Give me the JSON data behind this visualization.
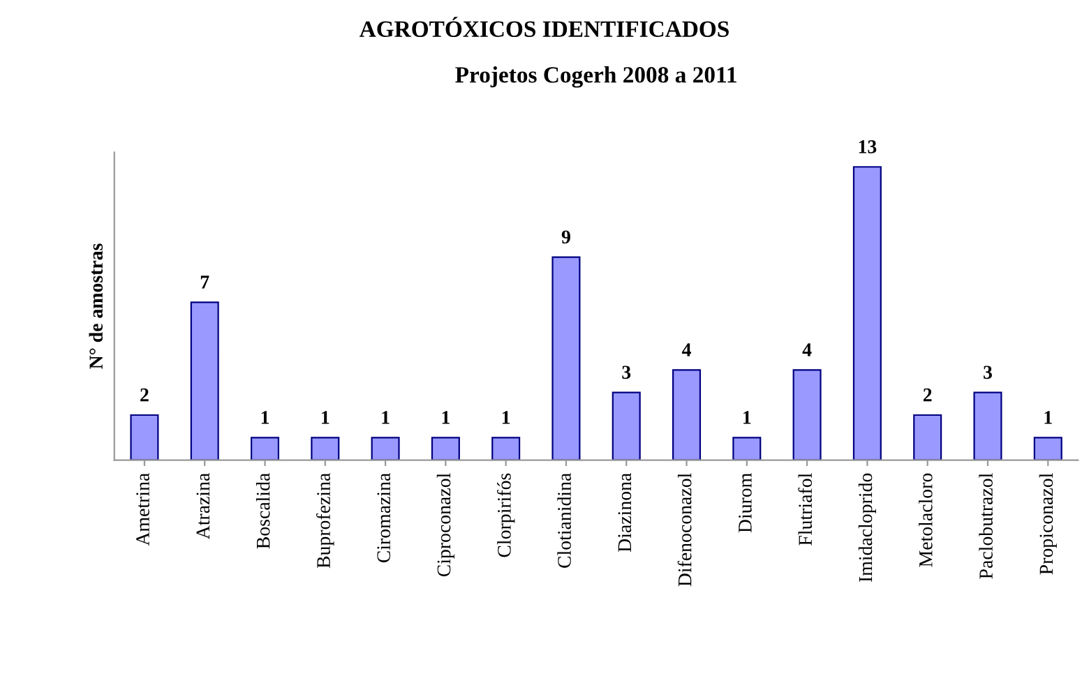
{
  "chart_data": {
    "type": "bar",
    "title": "AGROTÓXICOS IDENTIFICADOS",
    "subtitle": "Projetos Cogerh 2008 a 2011",
    "ylabel": "N° de amostras",
    "categories": [
      "Ametrina",
      "Atrazina",
      "Boscalida",
      "Buprofezina",
      "Ciromazina",
      "Ciproconazol",
      "Clorpirifós",
      "Clotianidina",
      "Diazinona",
      "Difenoconazol",
      "Diurom",
      "Flutriafol",
      "Imidacloprido",
      "Metolacloro",
      "Paclobutrazol",
      "Propiconazol"
    ],
    "values": [
      2,
      7,
      1,
      1,
      1,
      1,
      1,
      9,
      3,
      4,
      1,
      4,
      13,
      2,
      3,
      1
    ],
    "color": "#9999ff",
    "data_labels": true,
    "grid": false,
    "legend": false,
    "tick_labels": "x"
  }
}
